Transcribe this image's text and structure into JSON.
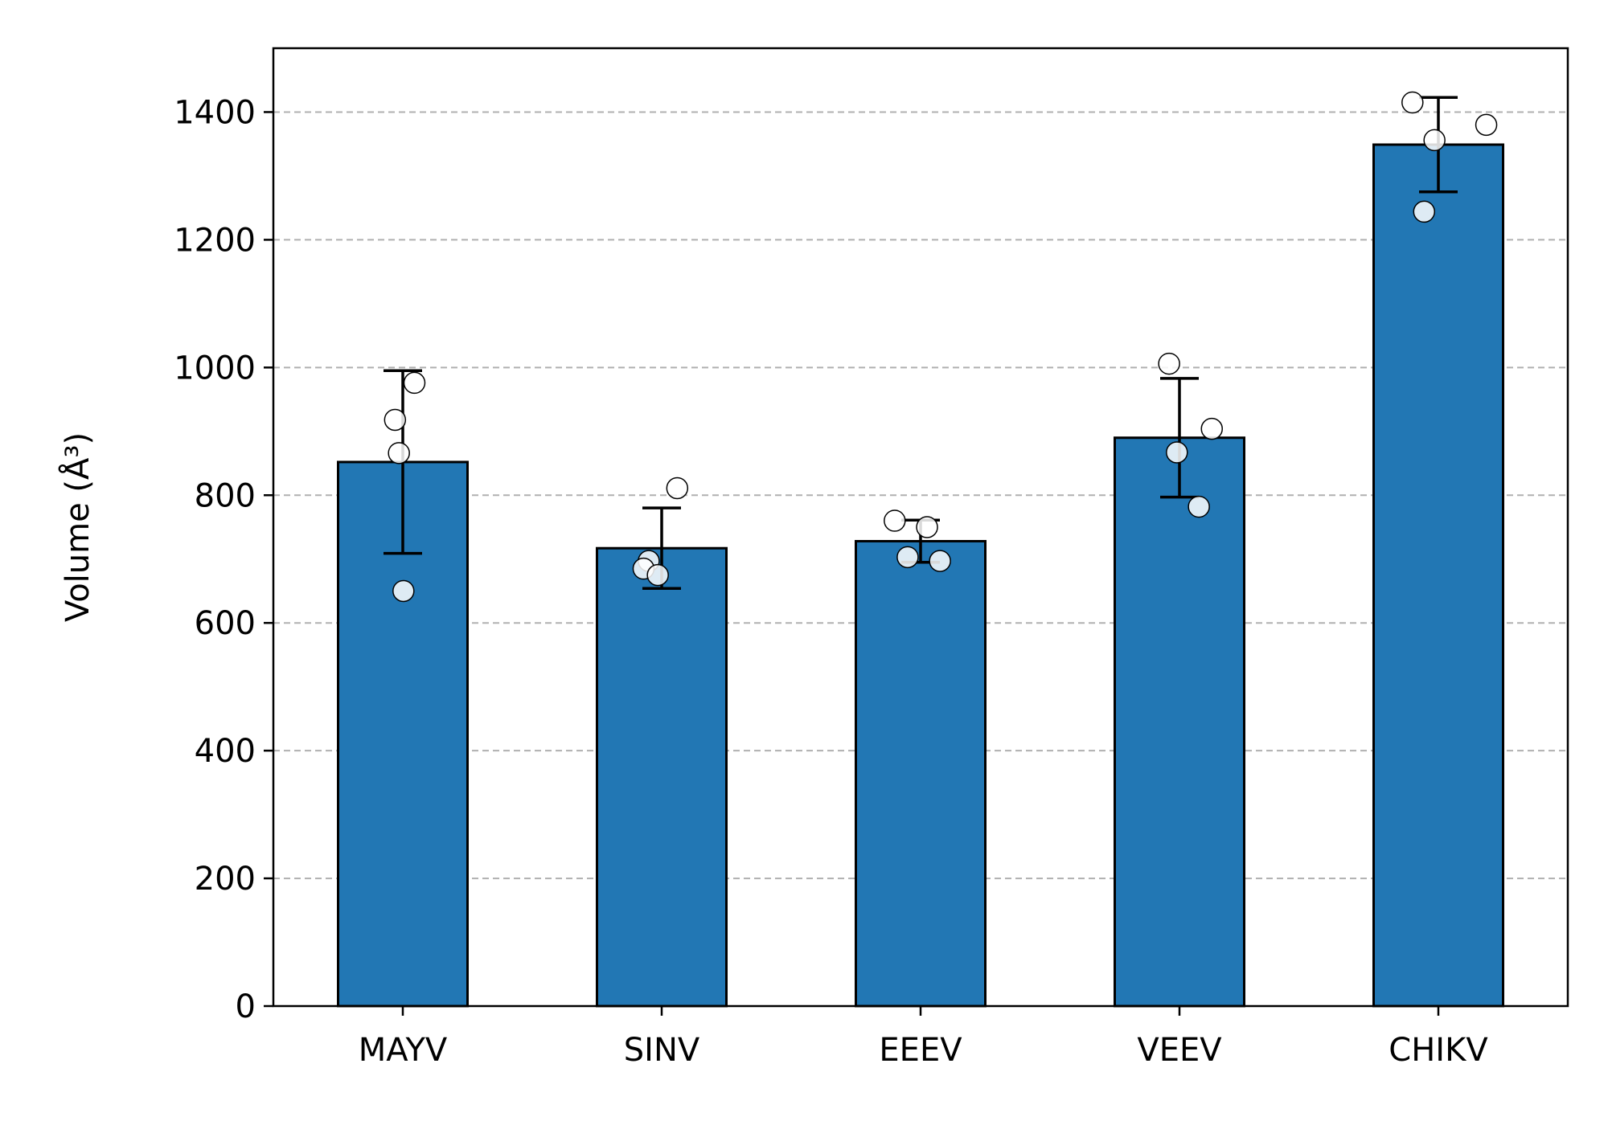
{
  "chart_data": {
    "type": "bar",
    "categories": [
      "MAYV",
      "SINV",
      "EEEV",
      "VEEV",
      "CHIKV"
    ],
    "values": [
      852,
      717,
      728,
      890,
      1349
    ],
    "error": [
      143,
      63,
      33,
      93,
      74
    ],
    "points": [
      [
        918,
        866,
        976,
        650
      ],
      [
        697,
        685,
        675,
        811
      ],
      [
        760,
        703,
        697,
        750
      ],
      [
        1006,
        867,
        782,
        904
      ],
      [
        1415,
        1356,
        1244,
        1380
      ]
    ],
    "ylabel": "Volume (Å³)",
    "xlabel": "",
    "title": "",
    "ylim": [
      0,
      1500
    ],
    "yticks": [
      0,
      200,
      400,
      600,
      800,
      1000,
      1200,
      1400
    ],
    "grid": "horizontal dashed",
    "colors": {
      "bar": "#2277b4",
      "edge": "#000000",
      "grid": "#b0b0b0",
      "point_fill": "#ffffff"
    }
  }
}
